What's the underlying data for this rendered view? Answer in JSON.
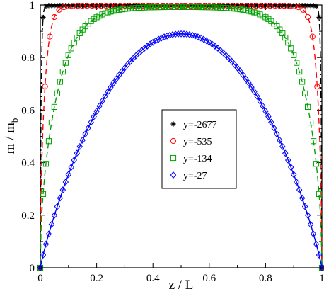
{
  "chart_data": {
    "type": "scatter",
    "title": "",
    "xlabel": "z / L",
    "ylabel_main": "m / m",
    "ylabel_sub": "b",
    "xlim": [
      0,
      1
    ],
    "ylim": [
      0,
      1
    ],
    "xticks": [
      "0",
      "0.2",
      "0.4",
      "0.6",
      "0.8",
      "1"
    ],
    "yticks": [
      "0",
      "0.2",
      "0.4",
      "0.6",
      "0.8",
      "1"
    ],
    "grid": false,
    "legend_placement": "center-right",
    "series": [
      {
        "name": "y=-2677",
        "marker": "star",
        "color": "#000000",
        "line_style": "dash-dot",
        "plateau": 0.998,
        "edge_width": 0.0065,
        "exponent": 0.5,
        "n_points": 100
      },
      {
        "name": "y=-535",
        "marker": "circle",
        "color": "#ff0000",
        "line_style": "dashed",
        "plateau": 0.997,
        "edge_width": 0.032,
        "exponent": 0.5,
        "n_points": 60
      },
      {
        "name": "y=-134",
        "marker": "square",
        "color": "#00a000",
        "line_style": "dashed",
        "plateau": 0.993,
        "edge_width": 0.125,
        "exponent": 0.5,
        "n_points": 100
      },
      {
        "name": "y=-27",
        "marker": "diamond",
        "color": "#0000ff",
        "line_style": "solid",
        "shape": "parabolic",
        "peak": 0.89,
        "peak_x": 0.5,
        "exponent": 0.9,
        "n_points": 100
      }
    ]
  }
}
